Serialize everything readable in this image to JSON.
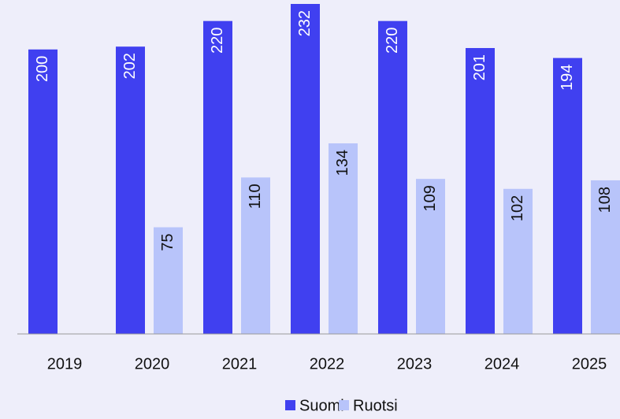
{
  "chart_data": {
    "type": "bar",
    "categories": [
      "2019",
      "2020",
      "2021",
      "2022",
      "2023",
      "2024",
      "2025"
    ],
    "series": [
      {
        "name": "Suomi",
        "color": "#4040f0",
        "values": [
          200,
          202,
          220,
          232,
          220,
          201,
          194
        ]
      },
      {
        "name": "Ruotsi",
        "color": "#b8c4fa",
        "values": [
          null,
          75,
          110,
          134,
          109,
          102,
          108
        ]
      }
    ],
    "ylim": [
      0,
      232
    ],
    "legend": "bottom"
  }
}
